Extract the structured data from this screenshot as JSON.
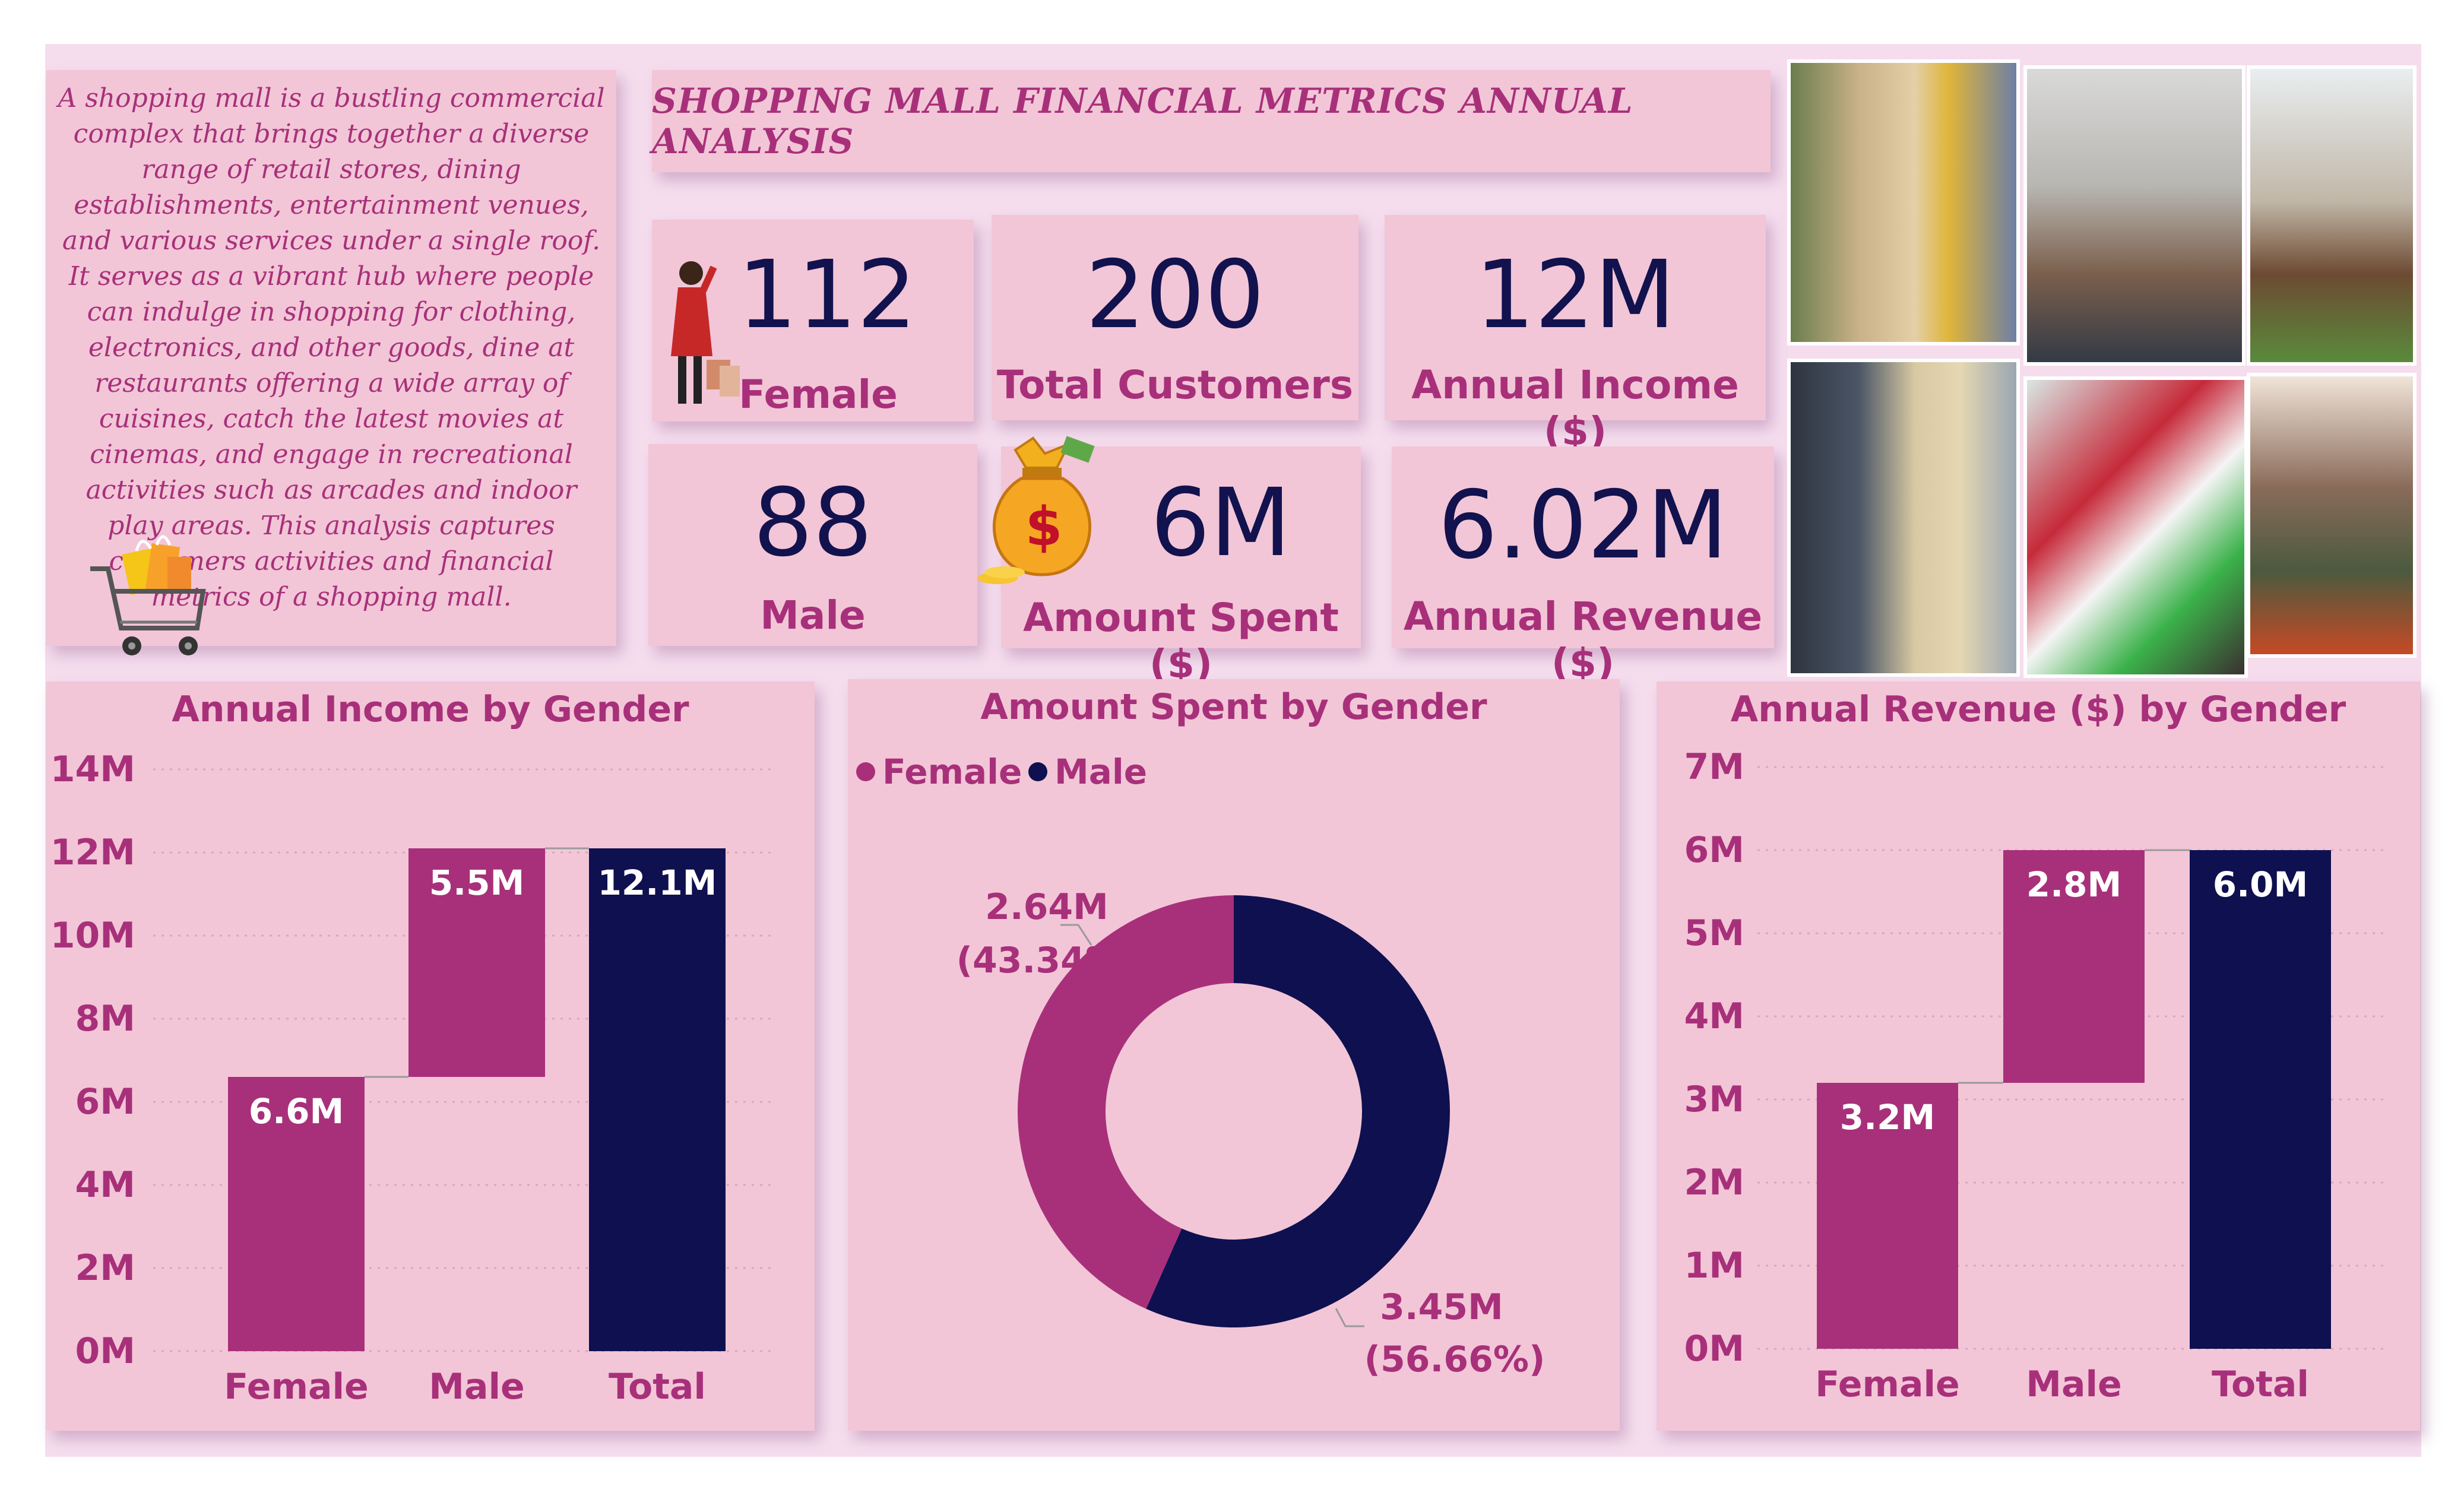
{
  "header": {
    "title": "SHOPPING MALL FINANCIAL METRICS ANNUAL ANALYSIS",
    "intro": "A shopping mall is a bustling commercial complex that brings together a diverse range of retail stores, dining establishments, entertainment venues, and various services under a single roof. It serves as a vibrant hub where people can indulge in shopping for clothing, electronics, and other goods, dine at restaurants offering a wide array of cuisines, catch the latest movies at cinemas, and engage in recreational activities such as arcades and indoor play areas. This analysis captures  customers activities and financial metrics of a shopping mall."
  },
  "kpis": {
    "female": {
      "value": "112",
      "label": "Female"
    },
    "total_customers": {
      "value": "200",
      "label": "Total Customers"
    },
    "annual_income": {
      "value": "12M",
      "label": "Annual Income ($)"
    },
    "male": {
      "value": "88",
      "label": "Male"
    },
    "amount_spent": {
      "value": "6M",
      "label": "Amount Spent ($)"
    },
    "annual_revenue": {
      "value": "6.02M",
      "label": "Annual Revenue ($)"
    }
  },
  "icons": [
    "shopping-woman-icon",
    "money-bag-icon",
    "shopping-cart-icon"
  ],
  "colors": {
    "female": "#a8307a",
    "male": "#a8307a",
    "total": "#0e1050",
    "donut_male": "#0e1050",
    "text_accent": "#a8307a"
  },
  "chart_data": [
    {
      "type": "bar",
      "subtype": "waterfall",
      "title": "Annual Income by Gender",
      "categories": [
        "Female",
        "Male",
        "Total"
      ],
      "values": [
        6.6,
        5.5,
        12.1
      ],
      "data_labels": [
        "6.6M",
        "5.5M",
        "12.1M"
      ],
      "ylim": [
        0,
        14
      ],
      "yticks": [
        "0M",
        "2M",
        "4M",
        "6M",
        "8M",
        "10M",
        "12M",
        "14M"
      ],
      "grid": true
    },
    {
      "type": "pie",
      "subtype": "donut",
      "title": "Amount Spent by Gender",
      "legend": [
        "Female",
        "Male"
      ],
      "legend_position": "top-left",
      "values": [
        2.64,
        3.45
      ],
      "data_labels": [
        [
          "2.64M",
          "(43.34%)"
        ],
        [
          "3.45M",
          "(56.66%)"
        ]
      ]
    },
    {
      "type": "bar",
      "subtype": "waterfall",
      "title": "Annual Revenue ($) by Gender",
      "categories": [
        "Female",
        "Male",
        "Total"
      ],
      "values": [
        3.2,
        2.8,
        6.0
      ],
      "data_labels": [
        "3.2M",
        "2.8M",
        "6.0M"
      ],
      "ylim": [
        0,
        7
      ],
      "yticks": [
        "0M",
        "1M",
        "2M",
        "3M",
        "4M",
        "5M",
        "6M",
        "7M"
      ],
      "grid": true
    }
  ]
}
